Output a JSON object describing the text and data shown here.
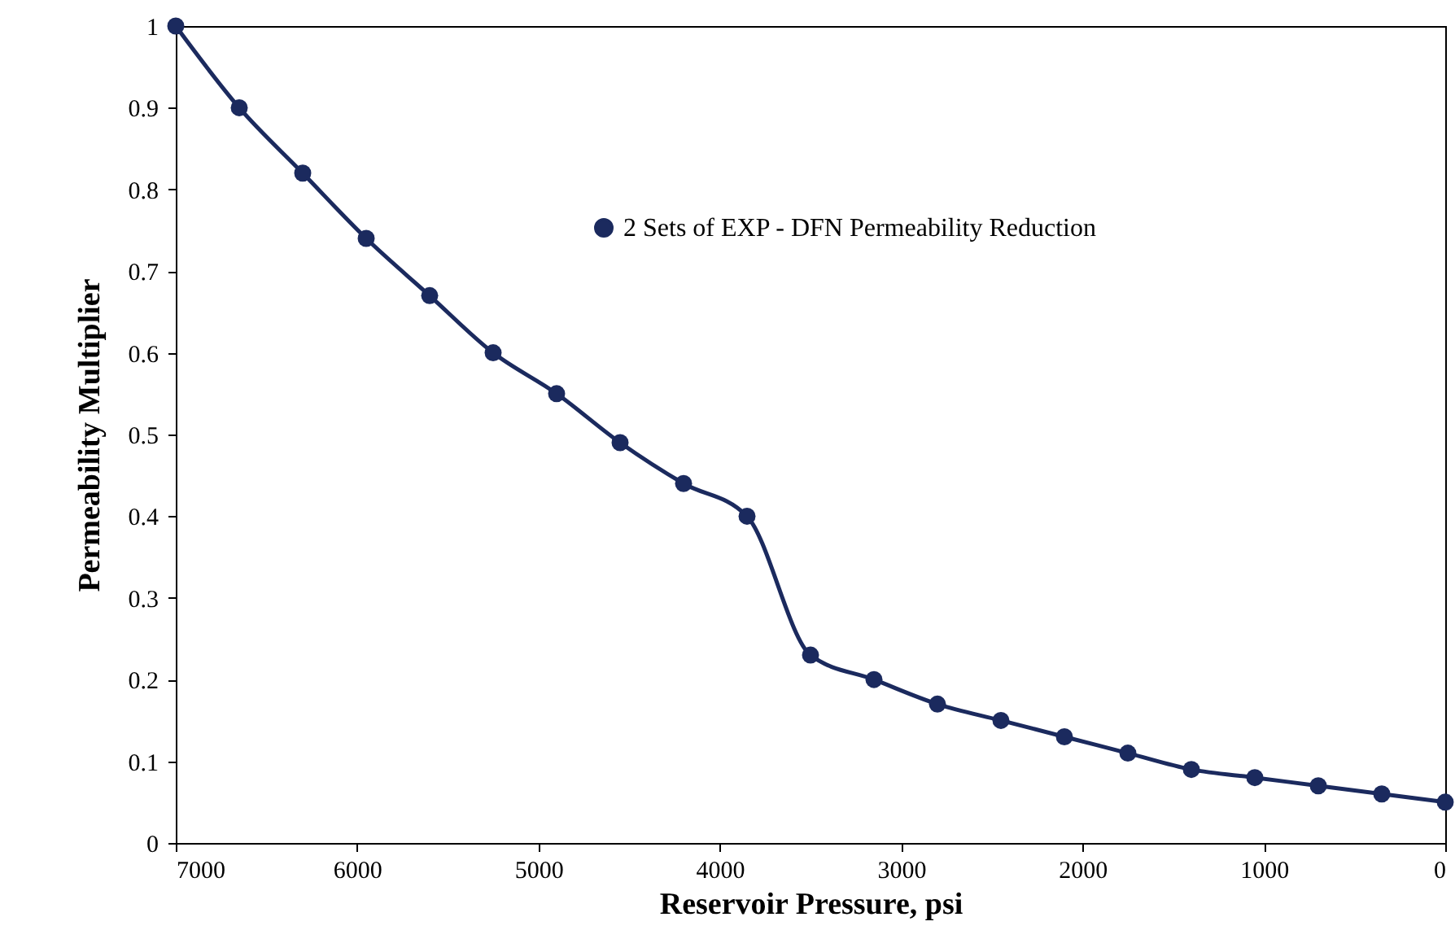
{
  "chart_data": {
    "type": "line",
    "xlabel": "Reservoir Pressure, psi",
    "ylabel": "Permeability Multiplier",
    "x": [
      7000,
      6650,
      6300,
      5950,
      5600,
      5250,
      4900,
      4550,
      4200,
      3850,
      3500,
      3150,
      2800,
      2450,
      2100,
      1750,
      1400,
      1050,
      700,
      350,
      0
    ],
    "series": [
      {
        "name": "2 Sets of EXP -  DFN Permeability Reduction",
        "color": "#1b2a5e",
        "values": [
          1,
          0.9,
          0.82,
          0.74,
          0.67,
          0.6,
          0.55,
          0.49,
          0.44,
          0.4,
          0.23,
          0.2,
          0.17,
          0.15,
          0.13,
          0.11,
          0.09,
          0.08,
          0.07,
          0.06,
          0.05
        ]
      }
    ],
    "xlim": [
      7000,
      0
    ],
    "xticks": [
      7000,
      6000,
      5000,
      4000,
      3000,
      2000,
      1000,
      0
    ],
    "ylim": [
      0,
      1
    ],
    "yticks": [
      0,
      0.1,
      0.2,
      0.3,
      0.4,
      0.5,
      0.6,
      0.7,
      0.8,
      0.9,
      1
    ],
    "grid": false,
    "legend": "top right",
    "marker": "circle",
    "line_style": "solid"
  }
}
